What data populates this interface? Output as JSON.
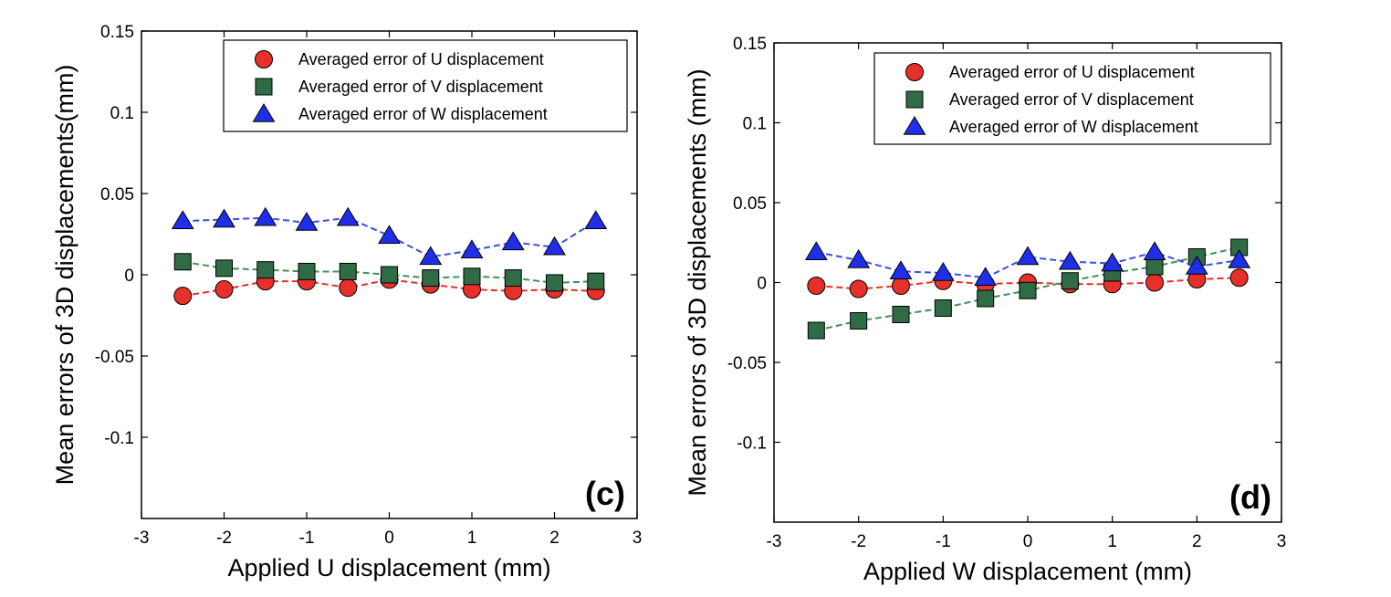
{
  "chart_data": [
    {
      "type": "line",
      "panel_label": "(c)",
      "xlabel": "Applied U displacement (mm)",
      "ylabel": "Mean errors of 3D displacements(mm)",
      "xlim": [
        -3,
        3
      ],
      "ylim": [
        -0.15,
        0.15
      ],
      "xticks": [
        -3,
        -2,
        -1,
        0,
        1,
        2,
        3
      ],
      "xtick_labels": [
        "-3",
        "-2",
        "-1",
        "0",
        "1",
        "2",
        "3"
      ],
      "yticks": [
        -0.1,
        -0.05,
        0,
        0.05,
        0.1,
        0.15
      ],
      "ytick_labels": [
        "-0.1",
        "-0.05",
        "0",
        "0.05",
        "0.1",
        "0.15"
      ],
      "grid": false,
      "legend_position": "top-right",
      "x": [
        -2.5,
        -2,
        -1.5,
        -1,
        -0.5,
        0,
        0.5,
        1,
        1.5,
        2,
        2.5
      ],
      "series": [
        {
          "name": "Averaged  error of U displacement",
          "marker": "circle",
          "color": "#e8302a",
          "line_color": "#e8302a",
          "values": [
            -0.013,
            -0.009,
            -0.004,
            -0.004,
            -0.008,
            -0.003,
            -0.006,
            -0.009,
            -0.01,
            -0.009,
            -0.01
          ]
        },
        {
          "name": "Averaged  error of V displacement",
          "marker": "square",
          "color": "#2f6b45",
          "line_color": "#3f9058",
          "values": [
            0.008,
            0.004,
            0.003,
            0.002,
            0.002,
            0.0,
            -0.002,
            -0.001,
            -0.002,
            -0.005,
            -0.004
          ]
        },
        {
          "name": "Averaged  error of W displacement",
          "marker": "triangle",
          "color": "#1f2fe8",
          "line_color": "#3a4fe8",
          "values": [
            0.033,
            0.034,
            0.035,
            0.032,
            0.035,
            0.024,
            0.011,
            0.015,
            0.02,
            0.017,
            0.033
          ]
        }
      ]
    },
    {
      "type": "line",
      "panel_label": "(d)",
      "xlabel": "Applied W displacement (mm)",
      "ylabel": "Mean errors of 3D displacements (mm)",
      "xlim": [
        -3,
        3
      ],
      "ylim": [
        -0.15,
        0.15
      ],
      "xticks": [
        -3,
        -2,
        -1,
        0,
        1,
        2,
        3
      ],
      "xtick_labels": [
        "-3",
        "-2",
        "-1",
        "0",
        "1",
        "2",
        "3"
      ],
      "yticks": [
        -0.1,
        -0.05,
        0,
        0.05,
        0.1,
        0.15
      ],
      "ytick_labels": [
        "-0.1",
        "-0.05",
        "0",
        "0.05",
        "0.1",
        "0.15"
      ],
      "grid": false,
      "legend_position": "top-right",
      "x": [
        -2.5,
        -2,
        -1.5,
        -1,
        -0.5,
        0,
        0.5,
        1,
        1.5,
        2,
        2.5
      ],
      "series": [
        {
          "name": "Averaged  error of U displacement",
          "marker": "circle",
          "color": "#e8302a",
          "line_color": "#e8302a",
          "values": [
            -0.002,
            -0.004,
            -0.002,
            0.001,
            -0.001,
            0.0,
            -0.001,
            -0.001,
            0.0,
            0.002,
            0.003
          ]
        },
        {
          "name": "Averaged  error of V displacement",
          "marker": "square",
          "color": "#2f6b45",
          "line_color": "#3f9058",
          "values": [
            -0.03,
            -0.024,
            -0.02,
            -0.016,
            -0.01,
            -0.005,
            0.001,
            0.006,
            0.01,
            0.016,
            0.022
          ]
        },
        {
          "name": "Averaged  error of W displacement",
          "marker": "triangle",
          "color": "#1f2fe8",
          "line_color": "#3a4fe8",
          "values": [
            0.019,
            0.014,
            0.007,
            0.006,
            0.003,
            0.016,
            0.013,
            0.012,
            0.019,
            0.01,
            0.014
          ]
        }
      ]
    }
  ]
}
